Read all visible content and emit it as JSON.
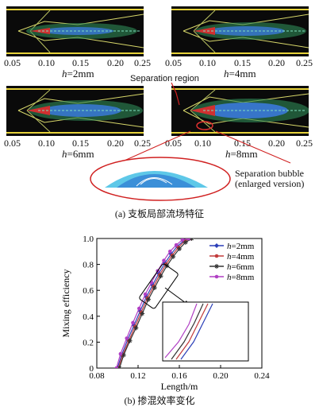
{
  "figure_a": {
    "x_ticks": [
      "0.05",
      "0.10",
      "0.15",
      "0.20",
      "0.25"
    ],
    "panels": [
      {
        "h_var": "h",
        "h_value": "=2mm"
      },
      {
        "h_var": "h",
        "h_value": "=4mm"
      },
      {
        "h_var": "h",
        "h_value": "=6mm"
      },
      {
        "h_var": "h",
        "h_value": "=8mm"
      }
    ],
    "separation_region_label": "Separation region",
    "separation_bubble_label": "Separation bubble",
    "enlarged_label": "(enlarged version)",
    "caption": "(a) 支板局部流场特征"
  },
  "chart_data": {
    "type": "line",
    "xlabel": "Length/m",
    "ylabel": "Mixing efficiency",
    "xlim": [
      0.08,
      0.24
    ],
    "ylim": [
      0.0,
      1.0
    ],
    "x_ticks": [
      "0.08",
      "0.12",
      "0.16",
      "0.20",
      "0.24"
    ],
    "y_ticks": [
      "0",
      "0.2",
      "0.4",
      "0.6",
      "0.8",
      "1.0"
    ],
    "legend_position": "top-right",
    "series": [
      {
        "name": "=2mm",
        "name_var": "h",
        "color": "#2b3fb8",
        "marker": "diamond",
        "x": [
          0.1,
          0.104,
          0.11,
          0.116,
          0.122,
          0.128,
          0.134,
          0.14,
          0.146,
          0.152,
          0.158,
          0.164,
          0.17
        ],
        "y": [
          0.0,
          0.1,
          0.22,
          0.33,
          0.44,
          0.55,
          0.64,
          0.73,
          0.81,
          0.88,
          0.94,
          0.98,
          1.0
        ]
      },
      {
        "name": "=4mm",
        "name_var": "h",
        "color": "#c23b3b",
        "marker": "circle",
        "x": [
          0.101,
          0.105,
          0.111,
          0.117,
          0.123,
          0.129,
          0.135,
          0.141,
          0.147,
          0.153,
          0.159,
          0.165,
          0.171
        ],
        "y": [
          0.0,
          0.1,
          0.21,
          0.32,
          0.43,
          0.54,
          0.63,
          0.72,
          0.8,
          0.87,
          0.93,
          0.98,
          1.0
        ]
      },
      {
        "name": "=6mm",
        "name_var": "h",
        "color": "#333333",
        "marker": "star",
        "x": [
          0.102,
          0.106,
          0.112,
          0.118,
          0.124,
          0.13,
          0.136,
          0.142,
          0.148,
          0.154,
          0.16,
          0.166,
          0.172
        ],
        "y": [
          0.0,
          0.1,
          0.21,
          0.31,
          0.42,
          0.53,
          0.62,
          0.71,
          0.79,
          0.86,
          0.92,
          0.97,
          1.0
        ]
      },
      {
        "name": "=8mm",
        "name_var": "h",
        "color": "#b03fc4",
        "marker": "circle",
        "x": [
          0.099,
          0.103,
          0.109,
          0.115,
          0.121,
          0.127,
          0.133,
          0.139,
          0.145,
          0.151,
          0.157,
          0.163,
          0.169
        ],
        "y": [
          0.0,
          0.11,
          0.23,
          0.35,
          0.46,
          0.57,
          0.66,
          0.75,
          0.83,
          0.9,
          0.95,
          0.99,
          1.0
        ]
      }
    ]
  },
  "caption_b": "(b) 掺混效率变化"
}
